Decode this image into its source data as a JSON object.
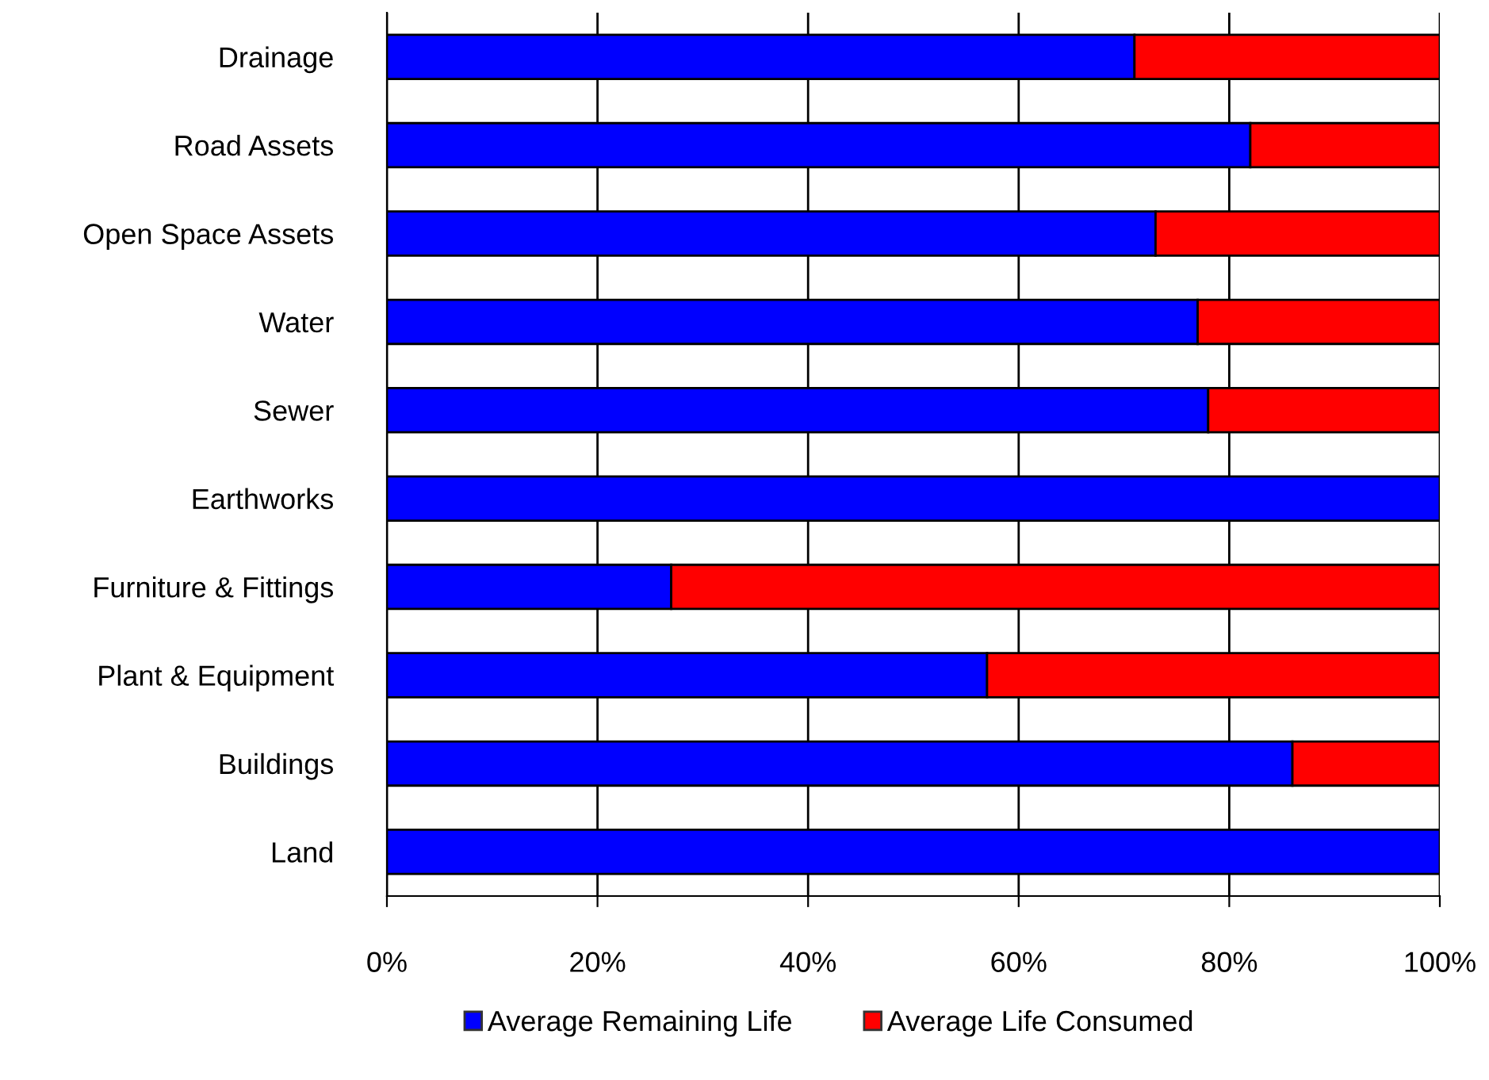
{
  "chart_data": {
    "type": "bar",
    "orientation": "horizontal",
    "stacked": true,
    "categories": [
      "Drainage",
      "Road Assets",
      "Open Space Assets",
      "Water",
      "Sewer",
      "Earthworks",
      "Furniture & Fittings",
      "Plant & Equipment",
      "Buildings",
      "Land"
    ],
    "series": [
      {
        "name": "Average Remaining Life",
        "color": "#0000ff",
        "values": [
          71,
          82,
          73,
          77,
          78,
          100,
          27,
          57,
          86,
          100
        ]
      },
      {
        "name": "Average Life Consumed",
        "color": "#ff0000",
        "values": [
          29,
          18,
          27,
          23,
          22,
          null,
          73,
          43,
          14,
          null
        ]
      }
    ],
    "xlim": [
      0,
      100
    ],
    "xticks": [
      {
        "value": 0,
        "label": "0%"
      },
      {
        "value": 20,
        "label": "20%"
      },
      {
        "value": 40,
        "label": "40%"
      },
      {
        "value": 60,
        "label": "60%"
      },
      {
        "value": 80,
        "label": "80%"
      },
      {
        "value": 100,
        "label": "100%"
      }
    ],
    "grid": "x",
    "legend": "bottom"
  }
}
